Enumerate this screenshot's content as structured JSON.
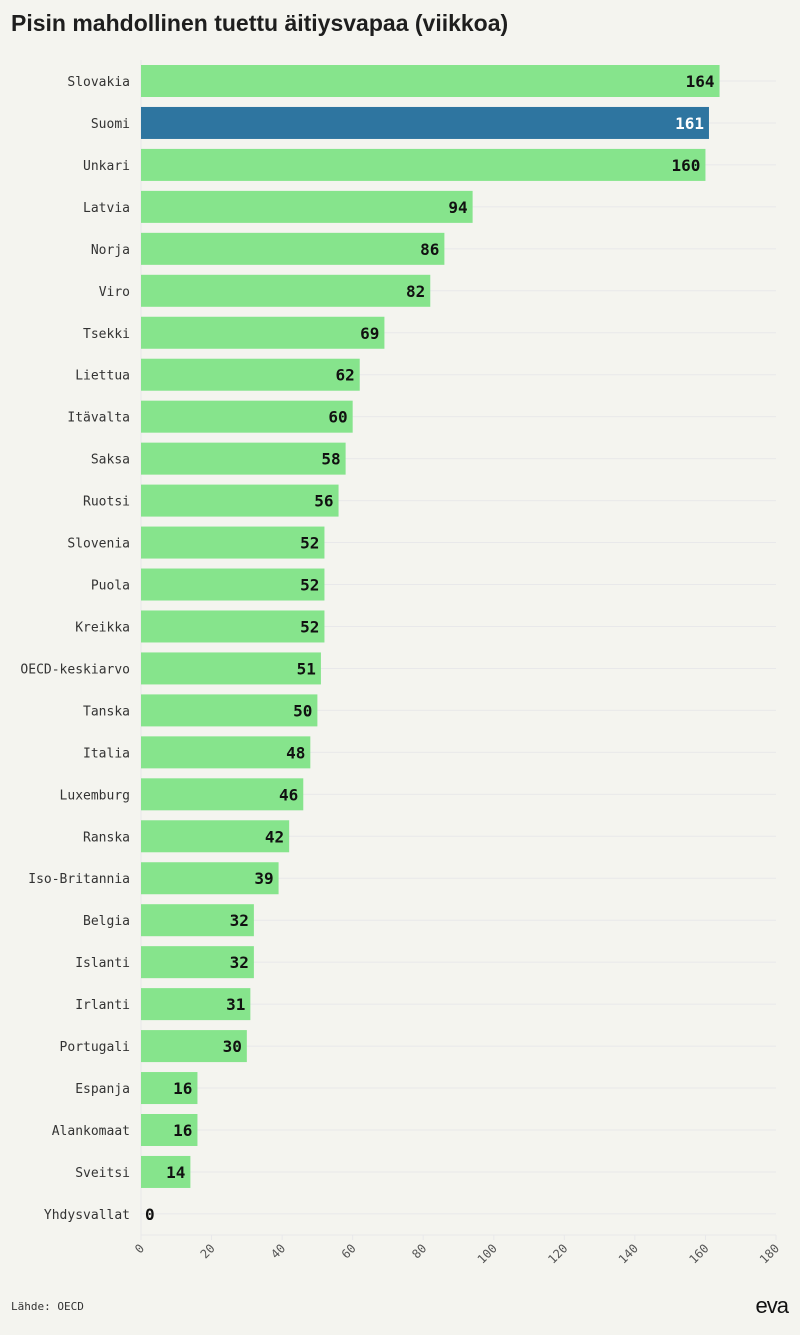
{
  "title": "Pisin mahdollinen tuettu äitiysvapaa (viikkoa)",
  "source": "Lähde: OECD",
  "logo_text": "eva",
  "colors": {
    "bar": "#86e48c",
    "highlight": "#2e75a0",
    "grid": "#e8e8ea",
    "label": "#111111",
    "highlight_label": "#ffffff"
  },
  "chart_data": {
    "type": "bar",
    "orientation": "horizontal",
    "title": "Pisin mahdollinen tuettu äitiysvapaa (viikkoa)",
    "xlabel": "",
    "ylabel": "",
    "xlim": [
      0,
      180
    ],
    "xticks": [
      0,
      20,
      40,
      60,
      80,
      100,
      120,
      140,
      160,
      180
    ],
    "grid": true,
    "highlight": "Suomi",
    "categories": [
      "Slovakia",
      "Suomi",
      "Unkari",
      "Latvia",
      "Norja",
      "Viro",
      "Tsekki",
      "Liettua",
      "Itävalta",
      "Saksa",
      "Ruotsi",
      "Slovenia",
      "Puola",
      "Kreikka",
      "OECD-keskiarvo",
      "Tanska",
      "Italia",
      "Luxemburg",
      "Ranska",
      "Iso-Britannia",
      "Belgia",
      "Islanti",
      "Irlanti",
      "Portugali",
      "Espanja",
      "Alankomaat",
      "Sveitsi",
      "Yhdysvallat"
    ],
    "values": [
      164,
      161,
      160,
      94,
      86,
      82,
      69,
      62,
      60,
      58,
      56,
      52,
      52,
      52,
      51,
      50,
      48,
      46,
      42,
      39,
      32,
      32,
      31,
      30,
      16,
      16,
      14,
      0
    ]
  }
}
